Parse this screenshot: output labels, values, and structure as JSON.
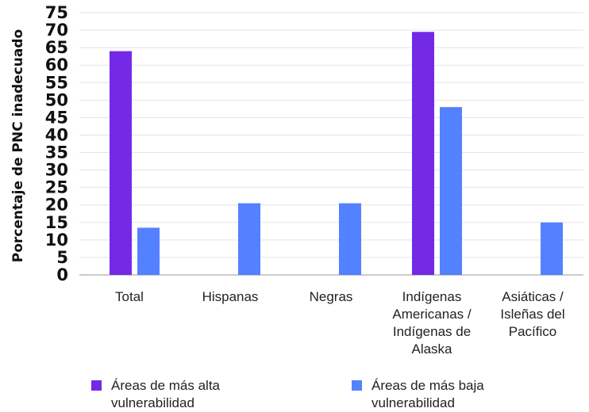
{
  "chart_data": {
    "type": "bar",
    "ylabel": "Porcentaje de PNC inadecuado",
    "ylim": [
      0,
      75
    ],
    "yticks": [
      0,
      5,
      10,
      15,
      20,
      25,
      30,
      35,
      40,
      45,
      50,
      55,
      60,
      65,
      70,
      75
    ],
    "grid": true,
    "legend_position": "bottom",
    "categories": [
      "Total",
      "Hispanas",
      "Negras",
      "Indígenas\nAmericanas /\nIndígenas de\nAlaska",
      "Asiáticas /\nIsleñas del\nPacífico"
    ],
    "series": [
      {
        "name": "Áreas de más alta vulnerabilidad",
        "label_lines": [
          "Áreas de más alta",
          "vulnerabilidad"
        ],
        "color": "#7329e6",
        "values": [
          64,
          null,
          null,
          69.5,
          null
        ]
      },
      {
        "name": "Áreas de más baja vulnerabilidad",
        "label_lines": [
          "Áreas de más baja",
          "vulnerabilidad"
        ],
        "color": "#5381ff",
        "values": [
          13.5,
          20.5,
          20.5,
          48,
          15
        ]
      }
    ]
  }
}
